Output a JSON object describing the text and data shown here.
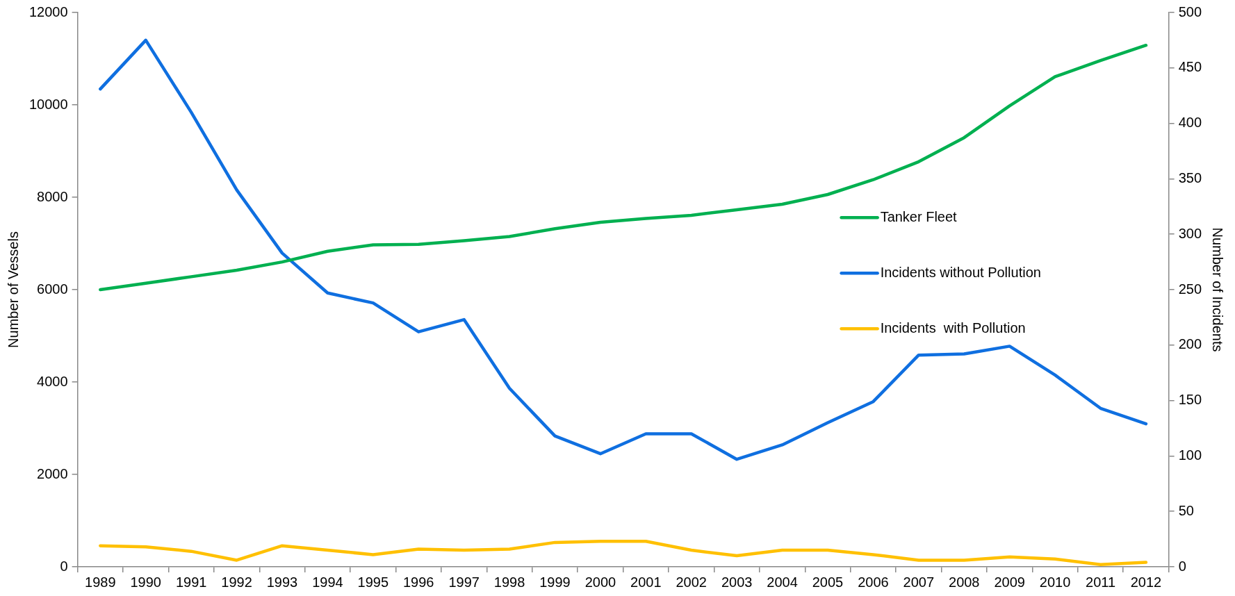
{
  "chart_data": {
    "type": "line",
    "ylabel": "Number of Vessels",
    "y2label": "Number of Incidents",
    "categories": [
      "1989",
      "1990",
      "1991",
      "1992",
      "1993",
      "1994",
      "1995",
      "1996",
      "1997",
      "1998",
      "1999",
      "2000",
      "2001",
      "2002",
      "2003",
      "2004",
      "2005",
      "2006",
      "2007",
      "2008",
      "2009",
      "2010",
      "2011",
      "2012"
    ],
    "series": [
      {
        "name": "Tanker Fleet",
        "color": "#00b050",
        "values": [
          6000,
          6140,
          6280,
          6420,
          6600,
          6830,
          6970,
          6980,
          7060,
          7150,
          7320,
          7460,
          7540,
          7610,
          7730,
          7850,
          8060,
          8380,
          8770,
          9290,
          9980,
          10610,
          10960,
          11290
        ]
      },
      {
        "name": "Incidents without Pollution",
        "color": "#0f6fe0",
        "axis": "y2",
        "values": [
          431,
          475,
          410,
          340,
          283,
          247,
          238,
          212,
          223,
          161,
          118,
          102,
          120,
          120,
          97,
          110,
          130,
          149,
          191,
          192,
          199,
          173,
          143,
          129
        ]
      },
      {
        "name": "Incidents  with Pollution",
        "color": "#ffc000",
        "axis": "y2",
        "values": [
          19,
          18,
          14,
          6,
          19,
          15,
          11,
          16,
          15,
          16,
          22,
          23,
          23,
          15,
          10,
          15,
          15,
          11,
          6,
          6,
          9,
          7,
          2,
          4
        ]
      }
    ],
    "ylim": [
      0,
      12000
    ],
    "yticks": [
      0,
      2000,
      4000,
      6000,
      8000,
      10000,
      12000
    ],
    "y2lim": [
      0,
      500
    ],
    "y2ticks": [
      0,
      50,
      100,
      150,
      200,
      250,
      300,
      350,
      400,
      450,
      500
    ],
    "grid": false,
    "legend": "right",
    "marker": "none",
    "line_style": "solid"
  }
}
